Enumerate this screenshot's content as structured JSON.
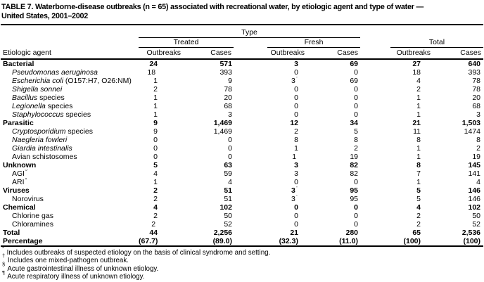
{
  "title": {
    "line1": "TABLE 7. Waterborne-disease outbreaks (n = 65) associated with recreational water, by etiologic agent and type of water —",
    "line2": "United States, 2001–2002"
  },
  "header": {
    "type_label": "Type",
    "groups": [
      "Treated",
      "Fresh",
      "Total"
    ],
    "agent_label": "Etiologic agent",
    "col_labels": [
      "Outbreaks",
      "Cases",
      "Outbreaks",
      "Cases",
      "Outbreaks",
      "Cases"
    ]
  },
  "rows": [
    {
      "label": [
        [
          "r",
          "Bacterial"
        ]
      ],
      "bold": true,
      "indent": false,
      "values": [
        "24",
        "571",
        "3",
        "69",
        "27",
        "640"
      ]
    },
    {
      "label": [
        [
          "i",
          "Pseudomonas aeruginosa"
        ]
      ],
      "bold": false,
      "indent": true,
      "values": [
        "18^*",
        "393",
        "0",
        "0",
        "18",
        "393"
      ]
    },
    {
      "label": [
        [
          "i",
          "Escherichia coli"
        ],
        [
          "r",
          " (O157:H7, O26:NM)"
        ]
      ],
      "bold": false,
      "indent": true,
      "values": [
        "1",
        "9",
        "3^†",
        "69",
        "4",
        "78"
      ]
    },
    {
      "label": [
        [
          "i",
          "Shigella sonnei"
        ]
      ],
      "bold": false,
      "indent": true,
      "values": [
        "2",
        "78",
        "0",
        "0",
        "2",
        "78"
      ]
    },
    {
      "label": [
        [
          "i",
          "Bacillus"
        ],
        [
          "r",
          " species"
        ]
      ],
      "bold": false,
      "indent": true,
      "values": [
        "1",
        "20",
        "0",
        "0",
        "1",
        "20"
      ]
    },
    {
      "label": [
        [
          "i",
          "Legionella"
        ],
        [
          "r",
          " species"
        ]
      ],
      "bold": false,
      "indent": true,
      "values": [
        "1",
        "68",
        "0",
        "0",
        "1",
        "68"
      ]
    },
    {
      "label": [
        [
          "i",
          "Staphylococcus"
        ],
        [
          "r",
          " species"
        ]
      ],
      "bold": false,
      "indent": true,
      "values": [
        "1",
        "3",
        "0",
        "0",
        "1",
        "3"
      ]
    },
    {
      "label": [
        [
          "r",
          "Parasitic"
        ]
      ],
      "bold": true,
      "indent": false,
      "values": [
        "9",
        "1,469",
        "12",
        "34",
        "21",
        "1,503"
      ]
    },
    {
      "label": [
        [
          "i",
          "Cryptosporidium"
        ],
        [
          "r",
          " species"
        ]
      ],
      "bold": false,
      "indent": true,
      "values": [
        "9",
        "1,469",
        "2",
        "5",
        "11",
        "1474"
      ]
    },
    {
      "label": [
        [
          "i",
          "Naegleria fowleri"
        ]
      ],
      "bold": false,
      "indent": true,
      "values": [
        "0",
        "0",
        "8",
        "8",
        "8",
        "8"
      ]
    },
    {
      "label": [
        [
          "i",
          "Giardia intestinalis"
        ]
      ],
      "bold": false,
      "indent": true,
      "values": [
        "0",
        "0",
        "1",
        "2",
        "1",
        "2"
      ]
    },
    {
      "label": [
        [
          "r",
          "Avian schistosomes"
        ]
      ],
      "bold": false,
      "indent": true,
      "values": [
        "0",
        "0",
        "1^*",
        "19",
        "1",
        "19"
      ]
    },
    {
      "label": [
        [
          "r",
          "Unknown"
        ]
      ],
      "bold": true,
      "indent": false,
      "values": [
        "5",
        "63",
        "3",
        "82",
        "8",
        "145"
      ]
    },
    {
      "label": [
        [
          "r",
          "AGI^§"
        ]
      ],
      "bold": false,
      "indent": true,
      "values": [
        "4",
        "59",
        "3",
        "82",
        "7",
        "141"
      ]
    },
    {
      "label": [
        [
          "r",
          "ARI^¶"
        ]
      ],
      "bold": false,
      "indent": true,
      "values": [
        "1",
        "4",
        "0",
        "0",
        "1",
        "4"
      ]
    },
    {
      "label": [
        [
          "r",
          "Viruses"
        ]
      ],
      "bold": true,
      "indent": false,
      "values": [
        "2",
        "51",
        "3^†",
        "95",
        "5",
        "146"
      ]
    },
    {
      "label": [
        [
          "r",
          "Norovirus"
        ]
      ],
      "bold": false,
      "indent": true,
      "values": [
        "2",
        "51",
        "3^†",
        "95",
        "5",
        "146"
      ]
    },
    {
      "label": [
        [
          "r",
          "Chemical"
        ]
      ],
      "bold": true,
      "indent": false,
      "values": [
        "4",
        "102",
        "0",
        "0",
        "4",
        "102"
      ]
    },
    {
      "label": [
        [
          "r",
          "Chlorine gas"
        ]
      ],
      "bold": false,
      "indent": true,
      "values": [
        "2",
        "50",
        "0",
        "0",
        "2",
        "50"
      ]
    },
    {
      "label": [
        [
          "r",
          "Chloramines"
        ]
      ],
      "bold": false,
      "indent": true,
      "values": [
        "2^*",
        "52",
        "0",
        "0",
        "2",
        "52"
      ]
    },
    {
      "label": [
        [
          "r",
          "Total"
        ]
      ],
      "bold": true,
      "indent": false,
      "values": [
        "44",
        "2,256",
        "21",
        "280",
        "65",
        "2,536"
      ]
    },
    {
      "label": [
        [
          "r",
          "Percentage"
        ]
      ],
      "bold": true,
      "indent": false,
      "values": [
        "(67.7)",
        "(89.0)",
        "(32.3)",
        "(11.0)",
        "(100)",
        "(100)"
      ]
    }
  ],
  "footnotes": [
    {
      "marker": "*",
      "text": "Includes outbreaks of suspected etiology on the basis of clinical syndrome and setting."
    },
    {
      "marker": "†",
      "text": "Includes one mixed-pathogen outbreak."
    },
    {
      "marker": "§",
      "text": "Acute gastrointestinal illness of unknown etiology."
    },
    {
      "marker": "¶",
      "text": "Acute respiratory illness of unknown etiology."
    }
  ]
}
